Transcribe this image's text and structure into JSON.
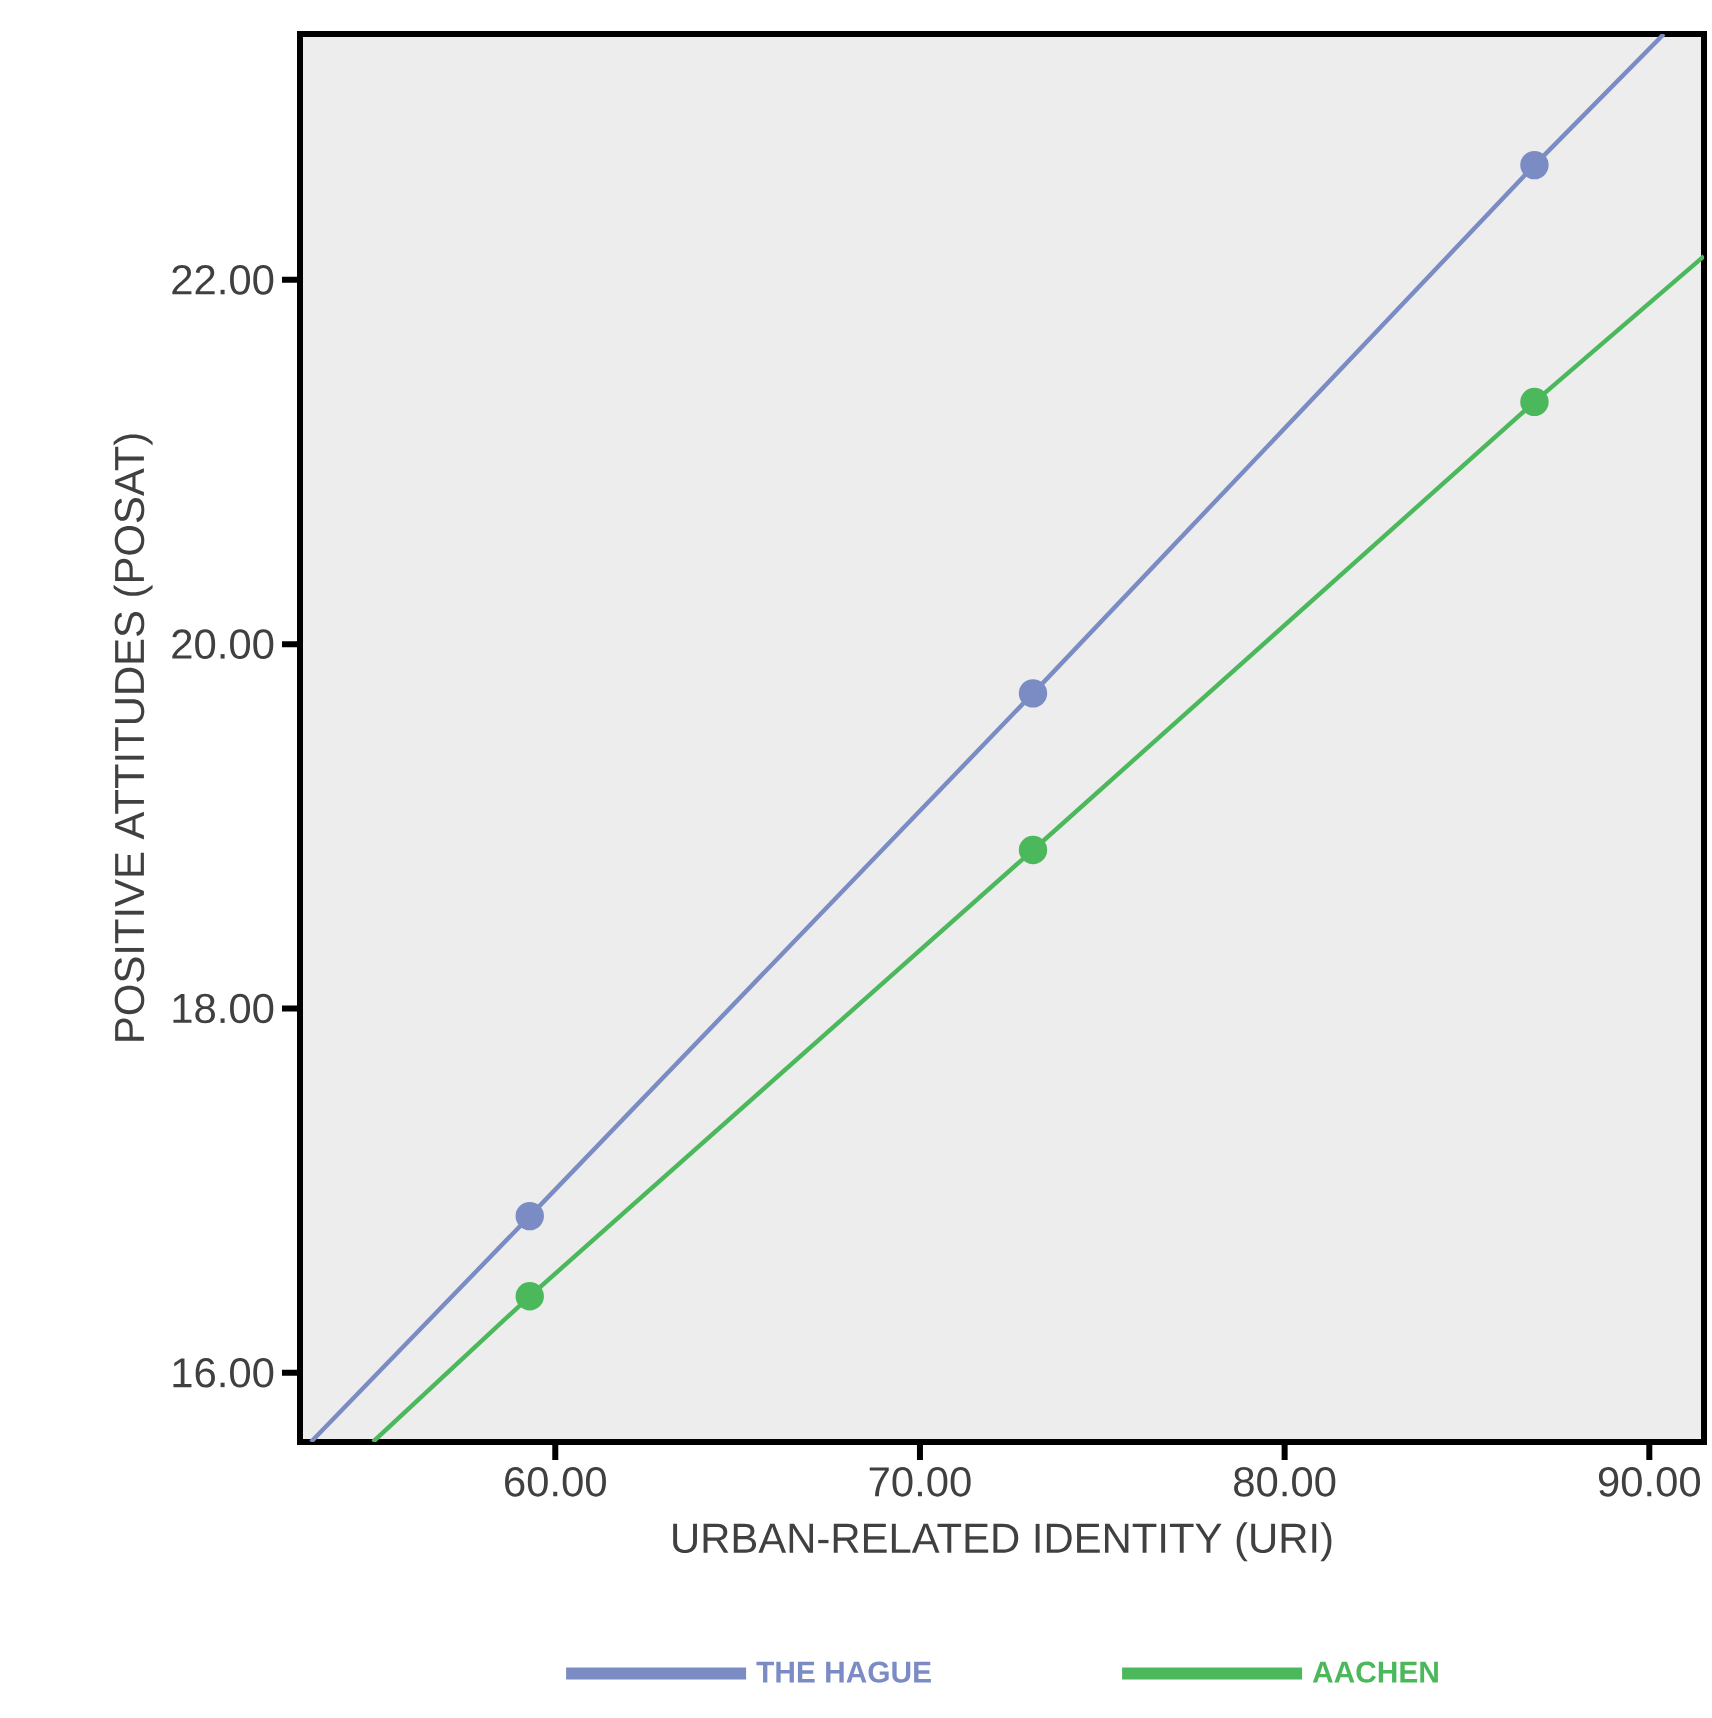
{
  "chart_data": {
    "type": "line",
    "xlabel": "URBAN-RELATED IDENTITY (URI)",
    "ylabel": "POSITIVE ATTITUDES (POSAT)",
    "xlim": [
      53.0,
      91.5
    ],
    "ylim": [
      15.62,
      23.35
    ],
    "xticks": [
      {
        "value": 60,
        "label": "60.00"
      },
      {
        "value": 70,
        "label": "70.00"
      },
      {
        "value": 80,
        "label": "80.00"
      },
      {
        "value": 90,
        "label": "90.00"
      }
    ],
    "yticks": [
      {
        "value": 16,
        "label": "16.00"
      },
      {
        "value": 18,
        "label": "18.00"
      },
      {
        "value": 20,
        "label": "20.00"
      },
      {
        "value": 22,
        "label": "22.00"
      }
    ],
    "legend": "bottom",
    "line_style": "solid",
    "marker": "circle",
    "series": [
      {
        "name": "THE HAGUE",
        "color": "#7b8cc4",
        "x": [
          53.3,
          59.3,
          73.1,
          86.85,
          90.4
        ],
        "values": [
          15.62,
          16.86,
          19.73,
          22.63,
          23.35
        ]
      },
      {
        "name": "AACHEN",
        "color": "#4cb85c",
        "x": [
          55.0,
          59.3,
          73.1,
          86.85,
          91.5
        ],
        "values": [
          15.62,
          16.42,
          18.87,
          21.33,
          22.13
        ]
      }
    ]
  }
}
